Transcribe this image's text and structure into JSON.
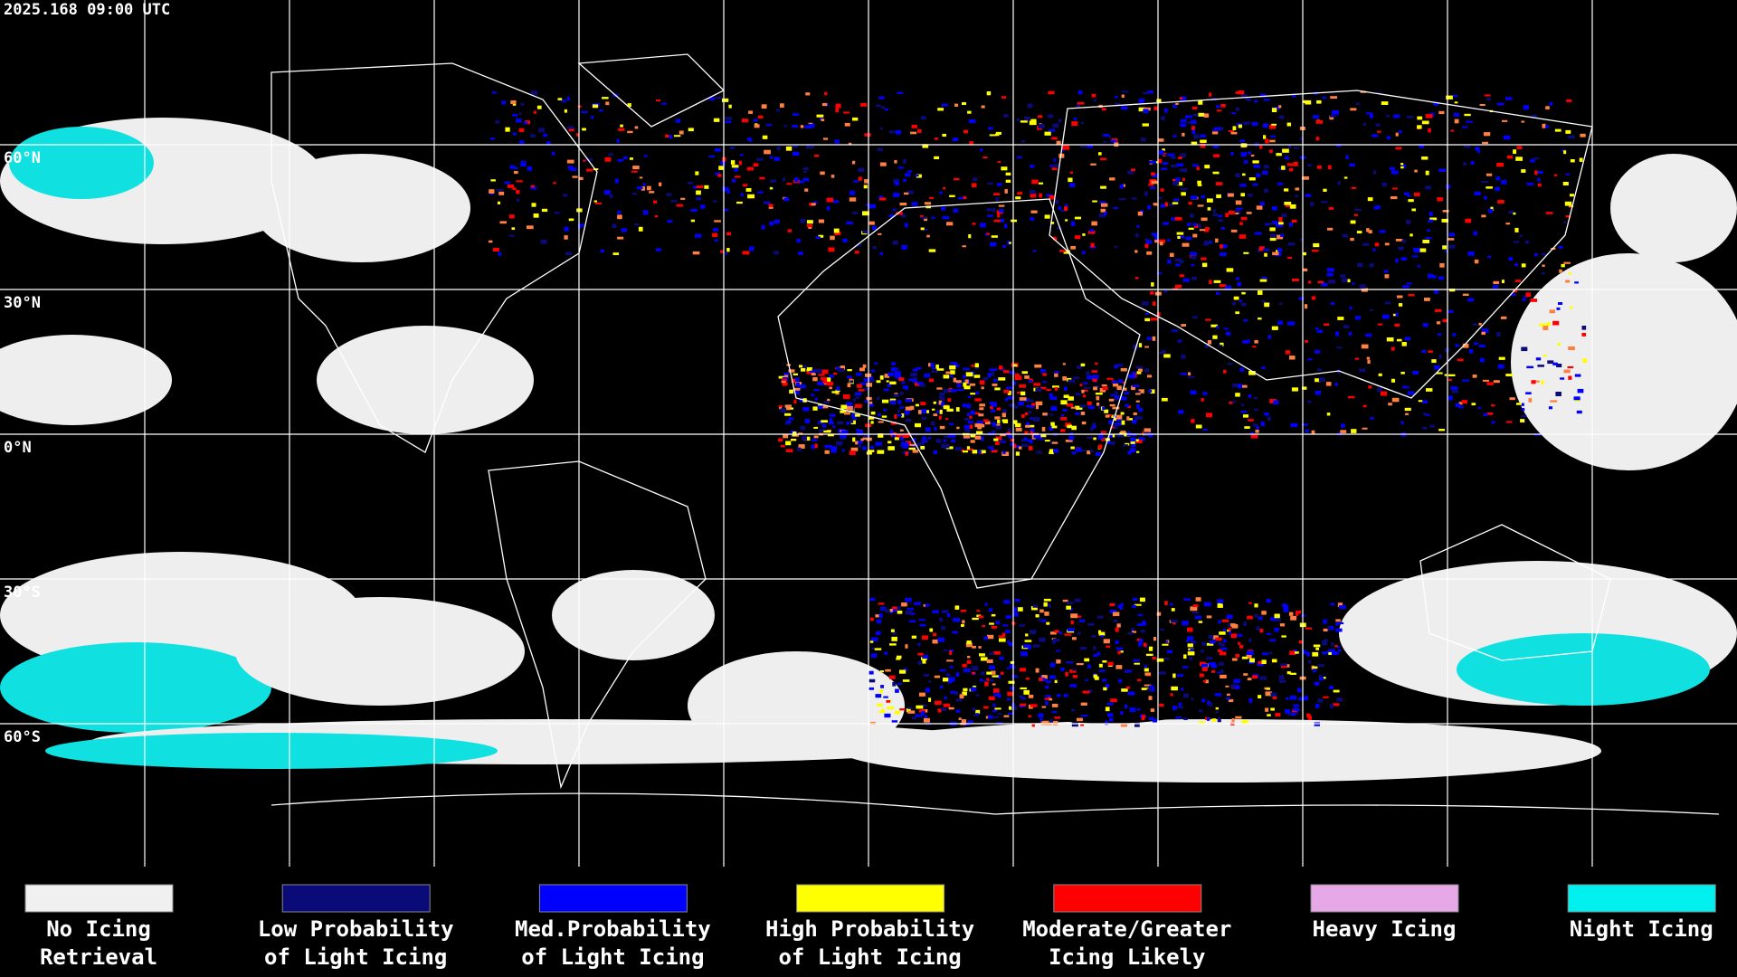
{
  "header": {
    "timestamp": "2025.168 09:00 UTC"
  },
  "latitude_labels": [
    "60°N",
    "30°N",
    "0°N",
    "30°S",
    "60°S"
  ],
  "legend": [
    {
      "color": "#f0f0f0",
      "lines": [
        "No Icing",
        "Retrieval"
      ]
    },
    {
      "color": "#0a0a78",
      "lines": [
        "Low Probability",
        "of Light Icing"
      ]
    },
    {
      "color": "#0000ff",
      "lines": [
        "Med.Probability",
        "of Light Icing"
      ]
    },
    {
      "color": "#ffff00",
      "lines": [
        "High Probability",
        "of Light Icing"
      ]
    },
    {
      "color": "#ff0000",
      "lines": [
        "Moderate/Greater",
        "Icing Likely"
      ]
    },
    {
      "color": "#e6a8e6",
      "lines": [
        "Heavy Icing"
      ]
    },
    {
      "color": "#00f0f0",
      "lines": [
        "Night Icing"
      ]
    }
  ]
}
